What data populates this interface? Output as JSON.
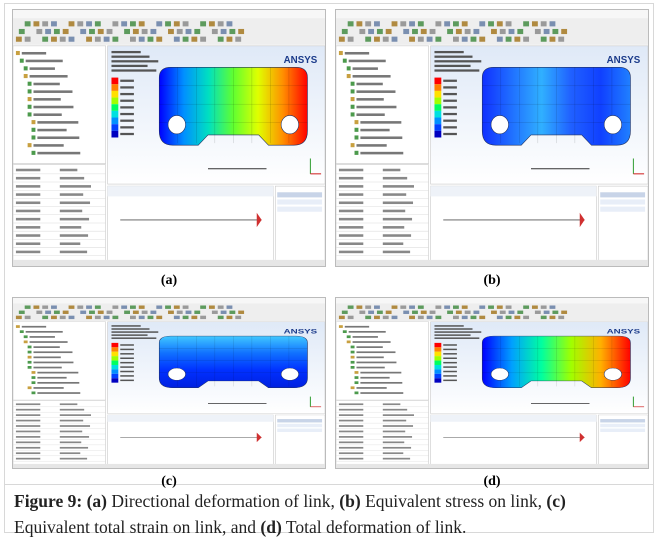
{
  "panels": [
    {
      "label": "(a)",
      "logo": "ANSYS"
    },
    {
      "label": "(b)",
      "logo": "ANSYS"
    },
    {
      "label": "(c)",
      "logo": "ANSYS"
    },
    {
      "label": "(d)",
      "logo": "ANSYS"
    }
  ],
  "caption": {
    "figure": "Figure 9:",
    "parts": [
      {
        "tag": "(a)",
        "text": "Directional deformation of link,"
      },
      {
        "tag": "(b)",
        "text": "Equivalent stress on link,"
      },
      {
        "tag": "(c)",
        "text": "Equivalent total strain on link, and"
      },
      {
        "tag": "(d)",
        "text": "Total deformation of link."
      }
    ]
  }
}
